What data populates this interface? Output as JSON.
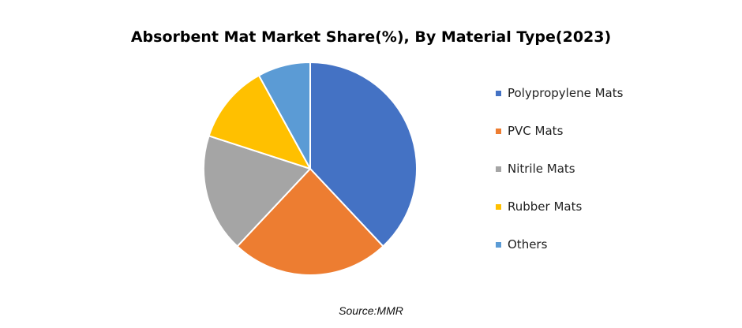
{
  "chart_data": {
    "type": "pie",
    "title": "Absorbent Mat Market Share(%), By Material Type(2023)",
    "categories": [
      "Polypropylene Mats",
      "PVC Mats",
      "Nitrile Mats",
      "Rubber Mats",
      "Others"
    ],
    "values": [
      38,
      24,
      18,
      12,
      8
    ],
    "colors": [
      "#4472C4",
      "#ED7D31",
      "#A5A5A5",
      "#FFC000",
      "#5B9BD5"
    ],
    "legend_position": "right",
    "start_angle": "top, clockwise"
  },
  "source": "Source:MMR"
}
